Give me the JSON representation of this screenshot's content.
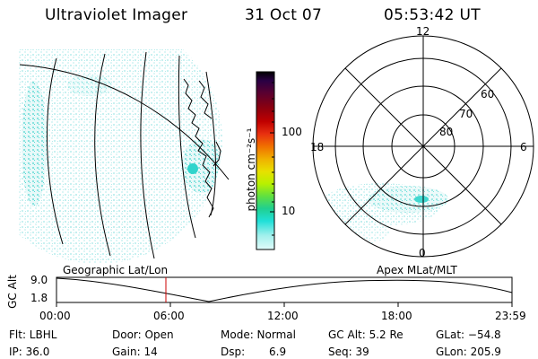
{
  "header": {
    "instrument": "Ultraviolet Imager",
    "date": "31 Oct 07",
    "time": "05:53:42 UT"
  },
  "colorbar": {
    "unit_label": "photon cm⁻²s⁻¹",
    "ticks": [
      "100",
      "10"
    ],
    "colors": [
      "#000000",
      "#2a0044",
      "#5a0030",
      "#8a0010",
      "#c00000",
      "#e83010",
      "#f07000",
      "#f0b000",
      "#e8e000",
      "#b8f000",
      "#60e040",
      "#20d090",
      "#20e0d8",
      "#a0f0ec",
      "#e0fbfa"
    ]
  },
  "polar_plot": {
    "mlt_labels": [
      "12",
      "18",
      "6",
      "0"
    ],
    "lat_labels": [
      "60",
      "70",
      "80"
    ]
  },
  "altitude_plot": {
    "ylabel": "GC Alt",
    "yticks": [
      "9.0",
      "1.8"
    ],
    "left_caption": "Geographic Lat/Lon",
    "right_caption": "Apex MLat/MLT",
    "xticks": [
      "00:00",
      "06:00",
      "12:00",
      "18:00",
      "23:59"
    ],
    "marker_color": "#cc0000"
  },
  "info": {
    "flt": "Flt: LBHL",
    "ip": "IP: 36.0",
    "door": "Door: Open",
    "gain": "Gain: 14",
    "mode": "Mode: Normal",
    "dsp_label": "Dsp:",
    "dsp_value": "6.9",
    "gcalt": "GC Alt: 5.2 Re",
    "seq": "Seq: 39",
    "glat": "GLat: −54.8",
    "glon": "GLon: 205.9"
  }
}
